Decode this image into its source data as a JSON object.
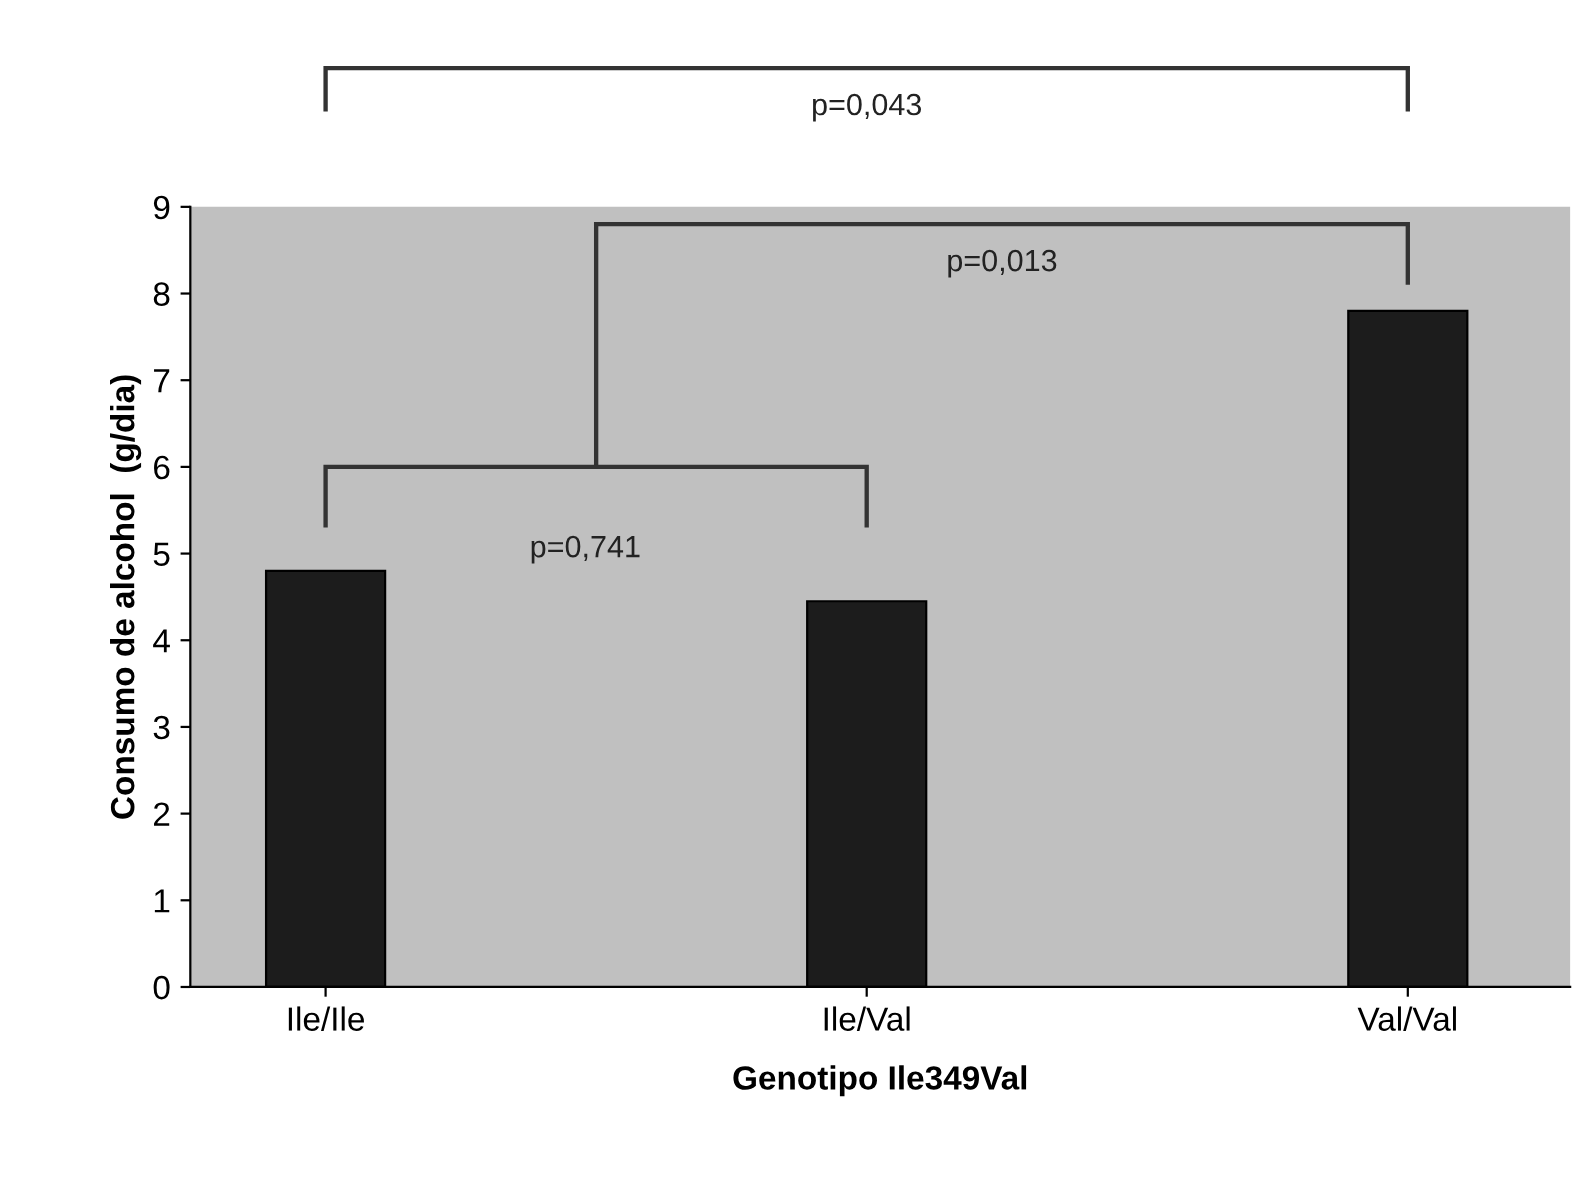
{
  "chart_data": {
    "type": "bar",
    "xlabel": "Genotipo Ile349Val",
    "ylabel": "Consumo de alcohol  (g/dia)",
    "categories": [
      "Ile/Ile",
      "Ile/Val",
      "Val/Val"
    ],
    "values": [
      4.8,
      4.45,
      7.8
    ],
    "color": "#1c1c1c",
    "ylim": [
      0,
      9
    ],
    "yticks": [
      0,
      1,
      2,
      3,
      4,
      5,
      6,
      7,
      8,
      9
    ],
    "grid": false,
    "annotations": [
      "p=0,043",
      "p=0,013",
      "p=0,741"
    ]
  }
}
